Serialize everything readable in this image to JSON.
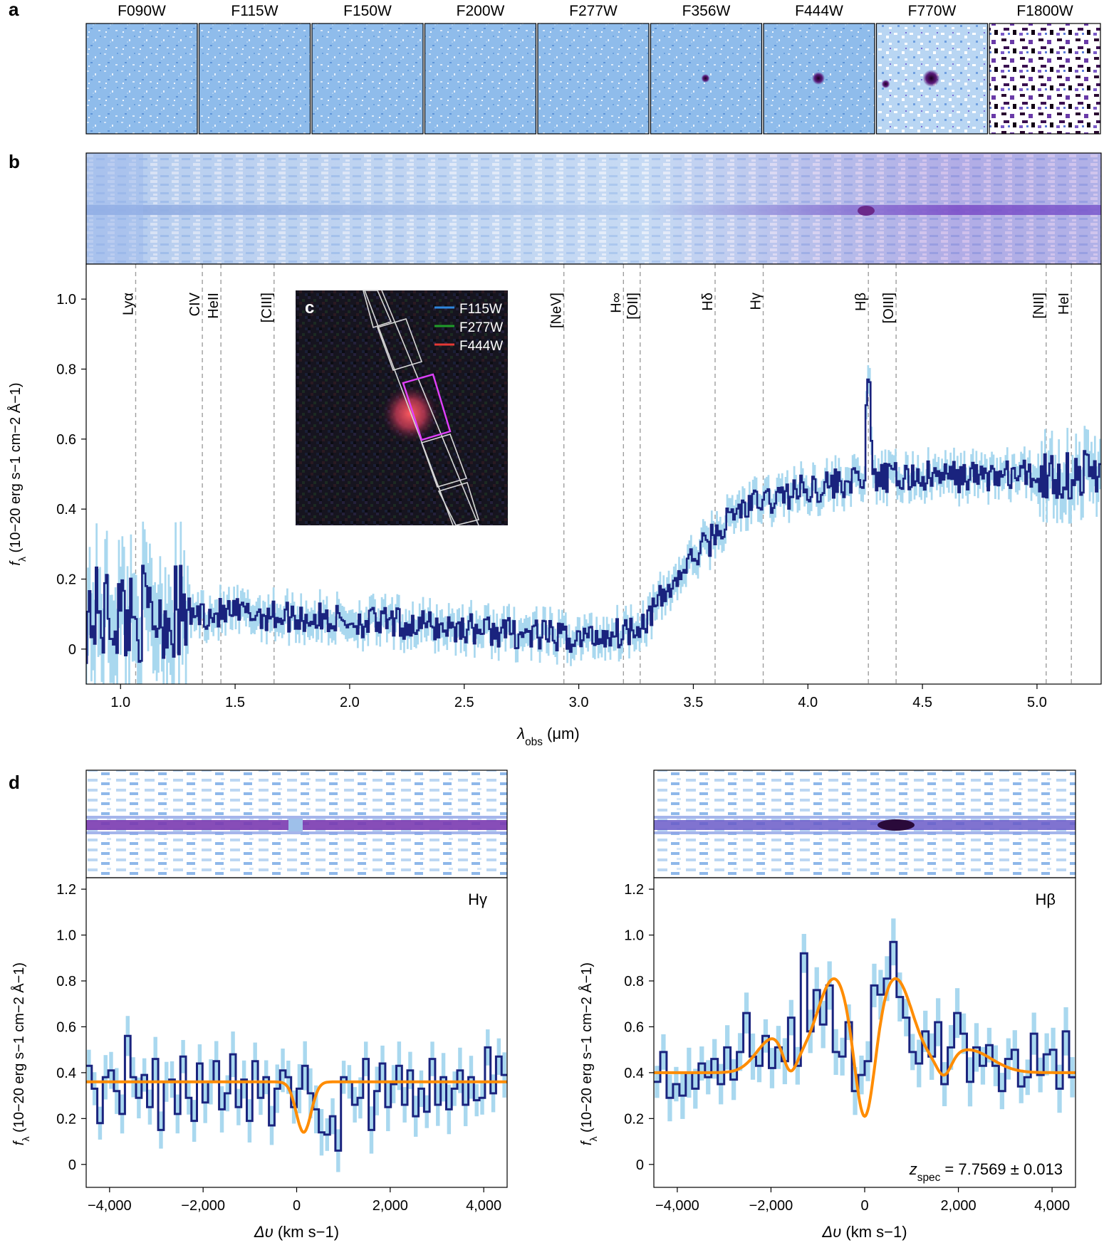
{
  "panel_labels": {
    "a": "a",
    "b": "b",
    "c": "c",
    "d": "d"
  },
  "colors": {
    "spectrum": "#1a237e",
    "error_band": "#a9d8ef",
    "model": "#ff8c00",
    "line_marker": "#9e9e9e",
    "image_bg": "#7fb3e6"
  },
  "filters": [
    "F090W",
    "F115W",
    "F150W",
    "F200W",
    "F277W",
    "F356W",
    "F444W",
    "F770W",
    "F1800W"
  ],
  "inset_legend": [
    {
      "label": "F115W",
      "color": "#2e86de"
    },
    {
      "label": "F277W",
      "color": "#1f9d2a"
    },
    {
      "label": "F444W",
      "color": "#e53935"
    }
  ],
  "chart_data": [
    {
      "type": "line",
      "panel": "b",
      "xlabel_main": "λ",
      "xlabel_sub": "obs",
      "xlabel_unit": " (μm)",
      "ylabel_main": "f",
      "ylabel_sub": "λ",
      "ylabel_unit": " (10−20 erg s−1 cm−2 Å−1)",
      "xlim": [
        0.85,
        5.28
      ],
      "ylim": [
        -0.1,
        1.1
      ],
      "xticks": [
        1.0,
        1.5,
        2.0,
        2.5,
        3.0,
        3.5,
        4.0,
        4.5,
        5.0
      ],
      "xtick_labels": [
        "1.0",
        "1.5",
        "2.0",
        "2.5",
        "3.0",
        "3.5",
        "4.0",
        "4.5",
        "5.0"
      ],
      "yticks": [
        0,
        0.2,
        0.4,
        0.6,
        0.8,
        1.0
      ],
      "ytick_labels": [
        "0",
        "0.2",
        "0.4",
        "0.6",
        "0.8",
        "1.0"
      ],
      "lines": [
        {
          "name": "Lyα",
          "x": 1.066
        },
        {
          "name": "CIV",
          "x": 1.357
        },
        {
          "name": "HeII",
          "x": 1.438
        },
        {
          "name": "[CIII]",
          "x": 1.67
        },
        {
          "name": "[NeV]",
          "x": 2.935
        },
        {
          "name": "H∞",
          "x": 3.195
        },
        {
          "name": "[OII]",
          "x": 3.268
        },
        {
          "name": "Hδ",
          "x": 3.595
        },
        {
          "name": "Hγ",
          "x": 3.805
        },
        {
          "name": "Hβ",
          "x": 4.264
        },
        {
          "name": "[OIII]",
          "x": 4.385
        },
        {
          "name": "[NII]",
          "x": 5.04
        },
        {
          "name": "HeI",
          "x": 5.15
        }
      ],
      "spectrum_anchors": {
        "x": [
          0.85,
          1.2,
          1.6,
          2.0,
          2.5,
          2.8,
          3.0,
          3.2,
          3.3,
          3.5,
          3.7,
          4.0,
          4.2,
          4.4,
          5.28
        ],
        "y": [
          0.1,
          0.1,
          0.1,
          0.08,
          0.06,
          0.04,
          0.03,
          0.05,
          0.09,
          0.26,
          0.4,
          0.46,
          0.48,
          0.49,
          0.5
        ]
      },
      "hbeta_peak": {
        "x": 4.264,
        "y": 0.82
      }
    },
    {
      "type": "line",
      "panel": "d-left",
      "annotation": "Hγ",
      "xlabel_main": "Δυ",
      "xlabel_unit": " (km s−1)",
      "ylabel_main": "f",
      "ylabel_sub": "λ",
      "ylabel_unit": " (10−20 erg s−1 cm−2 Å−1)",
      "xlim": [
        -4500,
        4500
      ],
      "ylim": [
        -0.1,
        1.25
      ],
      "xticks": [
        -4000,
        -2000,
        0,
        2000,
        4000
      ],
      "xtick_labels": [
        "−4,000",
        "−2,000",
        "0",
        "2,000",
        "4,000"
      ],
      "yticks": [
        0,
        0.2,
        0.4,
        0.6,
        0.8,
        1.0,
        1.2
      ],
      "ytick_labels": [
        "0",
        "0.2",
        "0.4",
        "0.6",
        "0.8",
        "1.0",
        "1.2"
      ],
      "data": [
        0.43,
        0.33,
        0.18,
        0.38,
        0.41,
        0.32,
        0.22,
        0.56,
        0.38,
        0.29,
        0.39,
        0.25,
        0.46,
        0.15,
        0.36,
        0.37,
        0.22,
        0.47,
        0.29,
        0.19,
        0.44,
        0.27,
        0.36,
        0.45,
        0.24,
        0.31,
        0.48,
        0.25,
        0.37,
        0.19,
        0.45,
        0.29,
        0.38,
        0.17,
        0.33,
        0.41,
        0.38,
        0.25,
        0.33,
        0.43,
        0.31,
        0.24,
        0.14,
        0.13,
        0.21,
        0.06,
        0.38,
        0.36,
        0.26,
        0.29,
        0.46,
        0.15,
        0.32,
        0.44,
        0.25,
        0.35,
        0.43,
        0.26,
        0.41,
        0.21,
        0.33,
        0.23,
        0.46,
        0.26,
        0.38,
        0.24,
        0.33,
        0.41,
        0.26,
        0.38,
        0.28,
        0.29,
        0.51,
        0.31,
        0.47,
        0.39
      ],
      "model": {
        "continuum": 0.36,
        "center": 150,
        "depth": 0.22,
        "sigma": 160
      }
    },
    {
      "type": "line",
      "panel": "d-right",
      "annotation": "Hβ",
      "redshift_label": "z",
      "redshift_sub": "spec",
      "redshift_value": " = 7.7569 ± 0.013",
      "xlabel_main": "Δυ",
      "xlabel_unit": " (km s−1)",
      "ylabel_main": "f",
      "ylabel_sub": "λ",
      "ylabel_unit": " (10−20 erg s−1 cm−2 Å−1)",
      "xlim": [
        -4500,
        4500
      ],
      "ylim": [
        -0.1,
        1.25
      ],
      "xticks": [
        -4000,
        -2000,
        0,
        2000,
        4000
      ],
      "xtick_labels": [
        "−4,000",
        "−2,000",
        "0",
        "2,000",
        "4,000"
      ],
      "yticks": [
        0,
        0.2,
        0.4,
        0.6,
        0.8,
        1.0,
        1.2
      ],
      "ytick_labels": [
        "0",
        "0.2",
        "0.4",
        "0.6",
        "0.8",
        "1.0",
        "1.2"
      ],
      "data": [
        0.36,
        0.49,
        0.29,
        0.35,
        0.3,
        0.4,
        0.33,
        0.44,
        0.38,
        0.46,
        0.35,
        0.51,
        0.37,
        0.49,
        0.66,
        0.47,
        0.43,
        0.56,
        0.42,
        0.51,
        0.45,
        0.64,
        0.43,
        0.92,
        0.58,
        0.76,
        0.61,
        0.78,
        0.49,
        0.47,
        0.62,
        0.32,
        0.39,
        0.45,
        0.78,
        0.74,
        0.81,
        0.97,
        0.73,
        0.64,
        0.49,
        0.44,
        0.58,
        0.47,
        0.62,
        0.35,
        0.51,
        0.66,
        0.57,
        0.36,
        0.51,
        0.43,
        0.52,
        0.43,
        0.32,
        0.46,
        0.5,
        0.34,
        0.38,
        0.57,
        0.39,
        0.48,
        0.5,
        0.33,
        0.58,
        0.38
      ],
      "model": {
        "continuum": 0.4,
        "components": [
          {
            "center": -1950,
            "amp": 0.15,
            "sigma": 350
          },
          {
            "center": -650,
            "amp": 0.41,
            "sigma": 380
          },
          {
            "center": 650,
            "amp": 0.41,
            "sigma": 380
          },
          {
            "center": 2200,
            "amp": 0.1,
            "sigma": 500
          }
        ],
        "absorptions": [
          {
            "center": -1600,
            "depth": 0.1,
            "sigma": 140
          },
          {
            "center": 0,
            "depth": 0.38,
            "sigma": 200
          },
          {
            "center": 1700,
            "depth": 0.08,
            "sigma": 150
          }
        ]
      }
    }
  ]
}
